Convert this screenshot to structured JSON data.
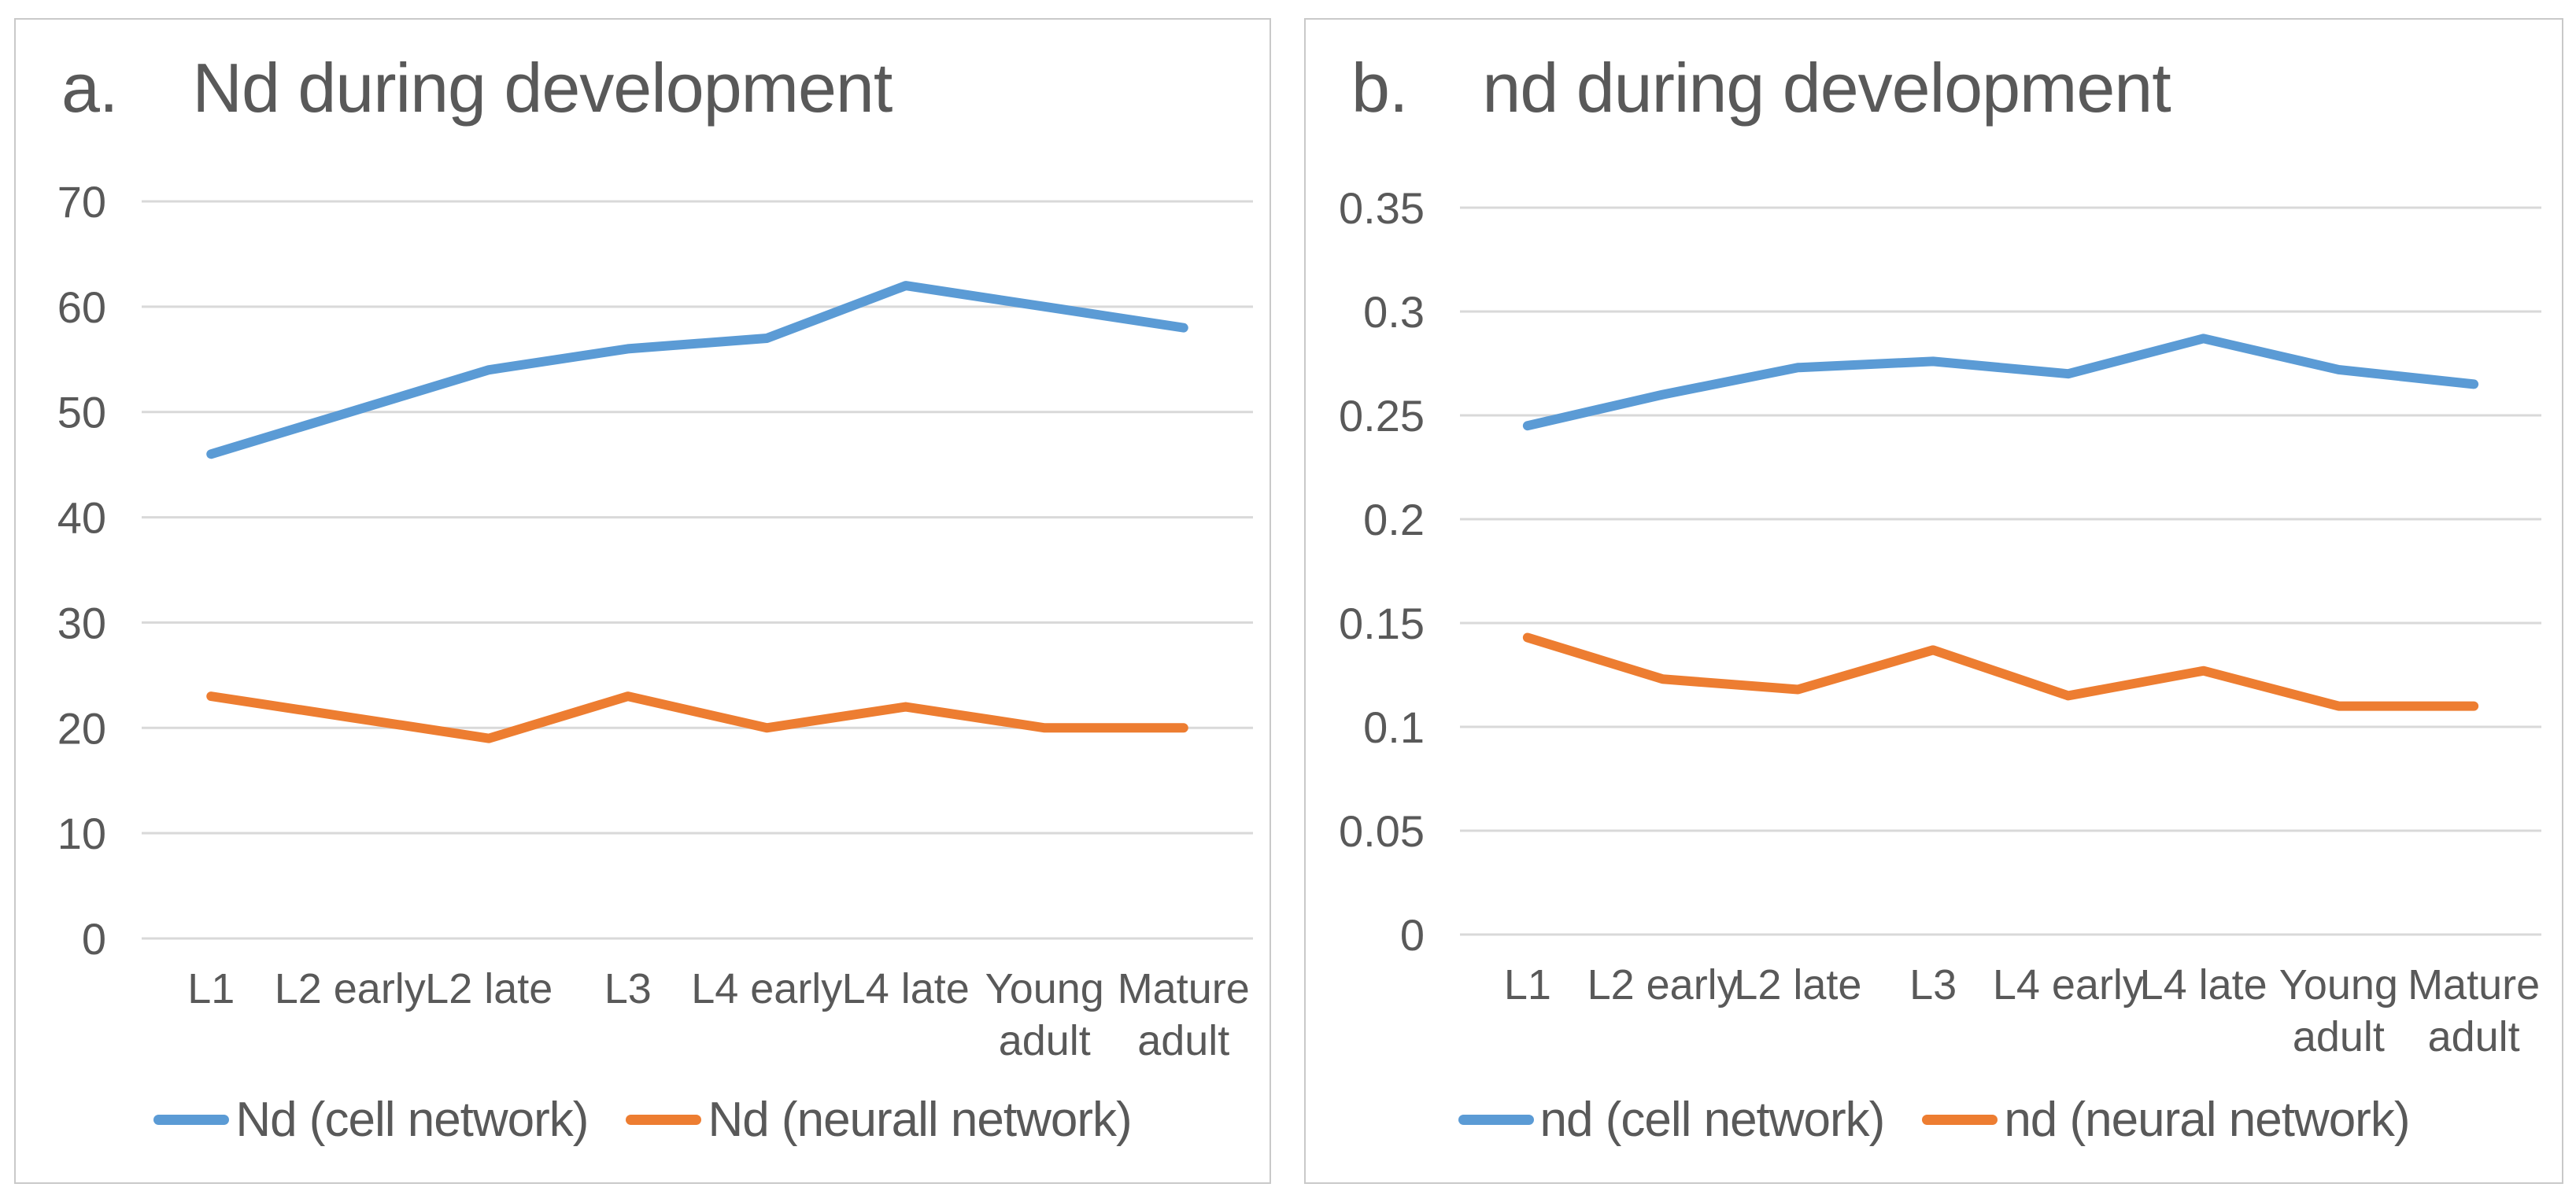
{
  "colors": {
    "background": "#FFFFFF",
    "panel_border": "#C9C9C9",
    "grid": "#D9D9D9",
    "text": "#595959",
    "series_blue": "#5B9BD5",
    "series_orange": "#ED7D31"
  },
  "chart_data": [
    {
      "type": "line",
      "panel_label": "a.",
      "title": "Nd during development",
      "xlabel": "",
      "ylabel": "",
      "grid": true,
      "legend_position": "bottom",
      "ylim": [
        0,
        70
      ],
      "categories": [
        "L1",
        "L2 early",
        "L2 late",
        "L3",
        "L4 early",
        "L4 late",
        "Young adult",
        "Mature adult"
      ],
      "y_ticks": [
        {
          "value": 70,
          "label": "70"
        },
        {
          "value": 60,
          "label": "60"
        },
        {
          "value": 50,
          "label": "50"
        },
        {
          "value": 40,
          "label": "40"
        },
        {
          "value": 30,
          "label": "30"
        },
        {
          "value": 20,
          "label": "20"
        },
        {
          "value": 10,
          "label": "10"
        },
        {
          "value": 0,
          "label": "0"
        }
      ],
      "series": [
        {
          "name": "Nd (cell network)",
          "color": "#5B9BD5",
          "values": [
            46,
            50,
            54,
            56,
            57,
            62,
            60,
            58
          ]
        },
        {
          "name": "Nd (neurall network)",
          "color": "#ED7D31",
          "values": [
            23,
            21,
            19,
            23,
            20,
            22,
            20,
            20
          ]
        }
      ]
    },
    {
      "type": "line",
      "panel_label": "b.",
      "title": "nd during development",
      "xlabel": "",
      "ylabel": "",
      "grid": true,
      "legend_position": "bottom",
      "ylim": [
        0,
        0.35
      ],
      "categories": [
        "L1",
        "L2 early",
        "L2 late",
        "L3",
        "L4 early",
        "L4 late",
        "Young adult",
        "Mature adult"
      ],
      "y_ticks": [
        {
          "value": 0.35,
          "label": "0.35"
        },
        {
          "value": 0.3,
          "label": "0.3"
        },
        {
          "value": 0.25,
          "label": "0.25"
        },
        {
          "value": 0.2,
          "label": "0.2"
        },
        {
          "value": 0.15,
          "label": "0.15"
        },
        {
          "value": 0.1,
          "label": "0.1"
        },
        {
          "value": 0.05,
          "label": "0.05"
        },
        {
          "value": 0,
          "label": "0"
        }
      ],
      "series": [
        {
          "name": "nd (cell network)",
          "color": "#5B9BD5",
          "values": [
            0.245,
            0.26,
            0.273,
            0.276,
            0.27,
            0.287,
            0.272,
            0.265
          ]
        },
        {
          "name": "nd (neural network)",
          "color": "#ED7D31",
          "values": [
            0.143,
            0.123,
            0.118,
            0.137,
            0.115,
            0.127,
            0.11,
            0.11
          ]
        }
      ]
    }
  ]
}
